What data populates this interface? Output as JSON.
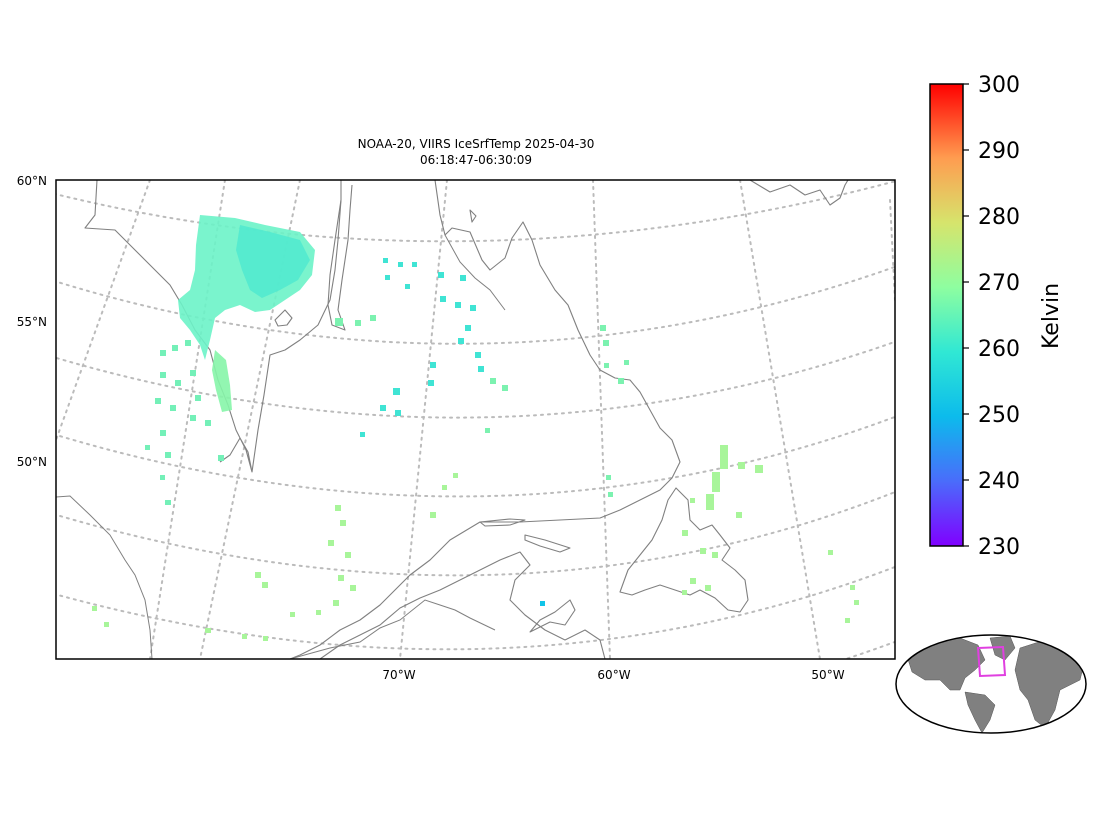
{
  "title": {
    "line1": "NOAA-20, VIIRS IceSrfTemp 2025-04-30",
    "line2": "06:18:47-06:30:09"
  },
  "lat_labels": [
    "60°N",
    "55°N",
    "50°N"
  ],
  "lon_labels": [
    "70°W",
    "60°W",
    "50°W"
  ],
  "colorbar": {
    "label": "Kelvin",
    "ticks": [
      "300",
      "290",
      "280",
      "270",
      "260",
      "250",
      "240",
      "230"
    ],
    "vmin": 230,
    "vmax": 300,
    "colormap": "rainbow"
  },
  "colors": {
    "coastline": "#808080",
    "gridline": "#bbbbbb",
    "inset_land": "#808080",
    "inset_box": "#e040e0"
  },
  "map": {
    "projection": "polar-stereographic",
    "gridlines": "dotted",
    "inset": "globe-locator"
  }
}
